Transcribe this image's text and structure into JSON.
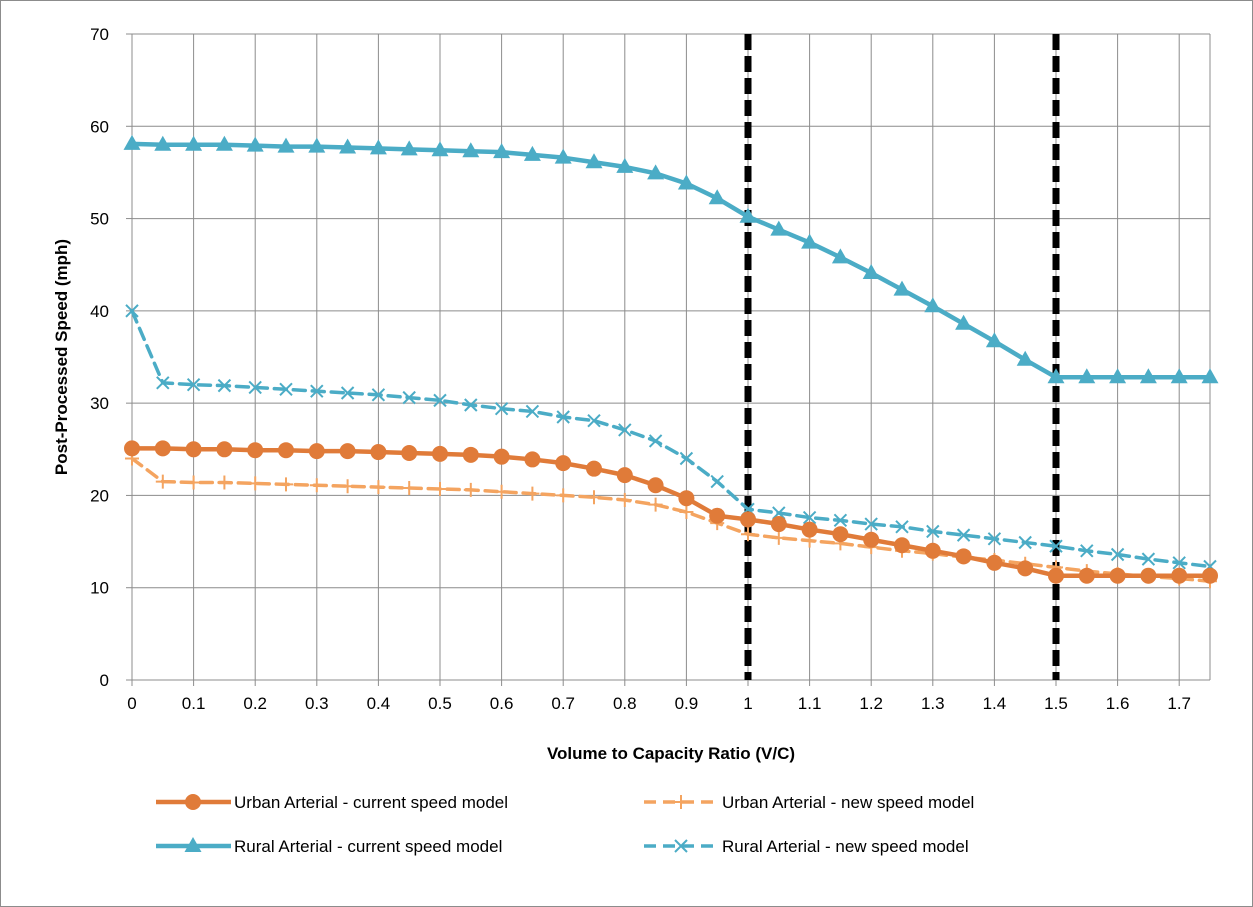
{
  "chart_data": {
    "type": "line",
    "title": "",
    "xlabel": "Volume to Capacity Ratio (V/C)",
    "ylabel": "Post-Processed Speed (mph)",
    "xlim": [
      0,
      1.75
    ],
    "ylim": [
      0,
      70
    ],
    "x_ticks": [
      0,
      0.1,
      0.2,
      0.3,
      0.4,
      0.5,
      0.6,
      0.7,
      0.8,
      0.9,
      1,
      1.1,
      1.2,
      1.3,
      1.4,
      1.5,
      1.6,
      1.7
    ],
    "y_ticks": [
      0,
      10,
      20,
      30,
      40,
      50,
      60,
      70
    ],
    "grid": true,
    "legend_position": "bottom",
    "reference_lines": [
      {
        "axis": "x",
        "value": 1,
        "style": "dashed",
        "color": "#000000"
      },
      {
        "axis": "x",
        "value": 1.5,
        "style": "dashed",
        "color": "#000000"
      }
    ],
    "x": [
      0,
      0.05,
      0.1,
      0.15,
      0.2,
      0.25,
      0.3,
      0.35,
      0.4,
      0.45,
      0.5,
      0.55,
      0.6,
      0.65,
      0.7,
      0.75,
      0.8,
      0.85,
      0.9,
      0.95,
      1,
      1.05,
      1.1,
      1.15,
      1.2,
      1.25,
      1.3,
      1.35,
      1.4,
      1.45,
      1.5,
      1.55,
      1.6,
      1.65,
      1.7,
      1.75
    ],
    "series": [
      {
        "name": "Urban Arterial - current speed model",
        "color": "#e07b39",
        "line_style": "solid",
        "marker": "circle",
        "values": [
          25.1,
          25.1,
          25.0,
          25.0,
          24.9,
          24.9,
          24.8,
          24.8,
          24.7,
          24.6,
          24.5,
          24.4,
          24.2,
          23.9,
          23.5,
          22.9,
          22.2,
          21.1,
          19.7,
          17.8,
          17.4,
          16.9,
          16.3,
          15.8,
          15.2,
          14.6,
          14.0,
          13.4,
          12.7,
          12.1,
          11.3,
          11.3,
          11.3,
          11.3,
          11.3,
          11.3
        ]
      },
      {
        "name": "Urban Arterial - new speed model",
        "color": "#f4a460",
        "line_style": "dashed",
        "marker": "plus",
        "values": [
          24.0,
          21.5,
          21.4,
          21.4,
          21.3,
          21.2,
          21.1,
          21.0,
          20.9,
          20.8,
          20.7,
          20.6,
          20.4,
          20.2,
          20.0,
          19.8,
          19.5,
          19.0,
          18.2,
          17.0,
          15.8,
          15.4,
          15.1,
          14.8,
          14.4,
          14.0,
          13.7,
          13.3,
          13.0,
          12.6,
          12.2,
          11.8,
          11.5,
          11.2,
          11.0,
          10.7
        ]
      },
      {
        "name": "Rural Arterial - current speed model",
        "color": "#4bacc6",
        "line_style": "solid",
        "marker": "triangle",
        "values": [
          58.1,
          58.0,
          58.0,
          58.0,
          57.9,
          57.8,
          57.8,
          57.7,
          57.6,
          57.5,
          57.4,
          57.3,
          57.2,
          56.9,
          56.6,
          56.1,
          55.6,
          54.9,
          53.8,
          52.2,
          50.2,
          48.8,
          47.4,
          45.8,
          44.1,
          42.3,
          40.5,
          38.6,
          36.7,
          34.7,
          32.8,
          32.8,
          32.8,
          32.8,
          32.8,
          32.8
        ]
      },
      {
        "name": "Rural Arterial - new speed model",
        "color": "#4bacc6",
        "line_style": "dashed",
        "marker": "x",
        "values": [
          40.0,
          32.2,
          32.0,
          31.9,
          31.7,
          31.5,
          31.3,
          31.1,
          30.9,
          30.6,
          30.3,
          29.8,
          29.4,
          29.1,
          28.5,
          28.1,
          27.1,
          25.9,
          24.0,
          21.5,
          18.5,
          18.1,
          17.6,
          17.3,
          16.9,
          16.6,
          16.1,
          15.7,
          15.3,
          14.9,
          14.5,
          14.0,
          13.6,
          13.1,
          12.7,
          12.3
        ]
      }
    ]
  }
}
